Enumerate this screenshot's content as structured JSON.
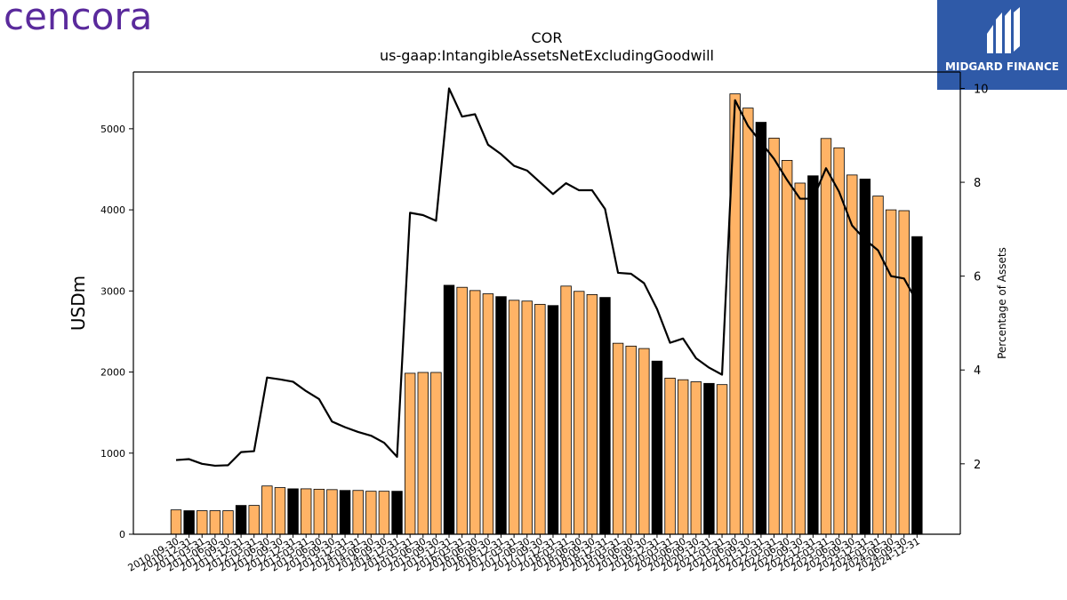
{
  "logos": {
    "left_text": "cencora",
    "right_text": "MIDGARD FINANCE"
  },
  "chart_data": {
    "type": "bar",
    "title": "COR",
    "subtitle": "us-gaap:IntangibleAssetsNetExcludingGoodwill",
    "ylabel": "USDm",
    "y2label": "Percentage of Assets",
    "ylim": [
      0,
      5700
    ],
    "y2lim": [
      0.5,
      10.35
    ],
    "yticks": [
      0,
      1000,
      2000,
      3000,
      4000,
      5000
    ],
    "y2ticks": [
      2,
      4,
      6,
      8,
      10
    ],
    "bar_colors": {
      "default": "#ffb366",
      "highlight": "#000000"
    },
    "categories": [
      "2010-09-30",
      "2010-12-31",
      "2011-03-31",
      "2011-06-30",
      "2011-09-30",
      "2011-12-31",
      "2012-03-31",
      "2012-06-30",
      "2012-09-30",
      "2012-12-31",
      "2013-03-31",
      "2013-06-30",
      "2013-09-30",
      "2013-12-31",
      "2014-03-31",
      "2014-06-30",
      "2014-09-30",
      "2014-12-31",
      "2015-03-31",
      "2015-06-30",
      "2015-09-30",
      "2015-12-31",
      "2016-03-31",
      "2016-06-30",
      "2016-09-30",
      "2016-12-31",
      "2017-03-31",
      "2017-06-30",
      "2017-09-30",
      "2017-12-31",
      "2018-03-31",
      "2018-06-30",
      "2018-09-30",
      "2018-12-31",
      "2019-03-31",
      "2019-06-30",
      "2019-09-30",
      "2019-12-31",
      "2020-03-31",
      "2020-06-30",
      "2020-09-30",
      "2020-12-31",
      "2021-03-31",
      "2021-06-30",
      "2021-09-30",
      "2021-12-31",
      "2022-03-31",
      "2022-06-30",
      "2022-09-30",
      "2022-12-31",
      "2023-03-31",
      "2023-06-30",
      "2023-09-30",
      "2023-12-31",
      "2024-03-31",
      "2024-06-30",
      "2024-09-30",
      "2024-12-31"
    ],
    "values": [
      300,
      290,
      290,
      290,
      290,
      355,
      355,
      595,
      575,
      560,
      560,
      555,
      550,
      540,
      540,
      530,
      530,
      530,
      1985,
      1995,
      1995,
      3070,
      3045,
      3005,
      2965,
      2930,
      2885,
      2875,
      2835,
      2820,
      3060,
      2995,
      2955,
      2920,
      2355,
      2320,
      2290,
      2135,
      1925,
      1905,
      1880,
      1860,
      1845,
      5430,
      5255,
      5080,
      4885,
      4610,
      4330,
      4420,
      4880,
      4765,
      4430,
      4380,
      4170,
      4000,
      3990,
      3670
    ],
    "highlight": [
      false,
      true,
      false,
      false,
      false,
      true,
      false,
      false,
      false,
      true,
      false,
      false,
      false,
      true,
      false,
      false,
      false,
      true,
      false,
      false,
      false,
      true,
      false,
      false,
      false,
      true,
      false,
      false,
      false,
      true,
      false,
      false,
      false,
      true,
      false,
      false,
      false,
      true,
      false,
      false,
      false,
      true,
      false,
      false,
      false,
      true,
      false,
      false,
      false,
      true,
      false,
      false,
      false,
      true,
      false,
      false,
      false,
      true
    ],
    "line_series": {
      "name": "Percentage of Assets",
      "values": [
        2.08,
        2.1,
        2.0,
        1.96,
        1.97,
        2.25,
        2.27,
        3.84,
        3.8,
        3.75,
        3.55,
        3.38,
        2.9,
        2.78,
        2.68,
        2.6,
        2.45,
        2.15,
        7.35,
        7.3,
        7.18,
        10.0,
        9.4,
        9.45,
        8.8,
        8.6,
        8.35,
        8.25,
        8.0,
        7.75,
        7.98,
        7.83,
        7.83,
        7.43,
        6.07,
        6.05,
        5.85,
        5.3,
        4.58,
        4.67,
        4.25,
        4.05,
        3.9,
        9.75,
        9.2,
        8.85,
        8.5,
        8.05,
        7.65,
        7.65,
        8.3,
        7.8,
        7.08,
        6.78,
        6.55,
        6.0,
        5.95,
        5.45
      ]
    }
  }
}
